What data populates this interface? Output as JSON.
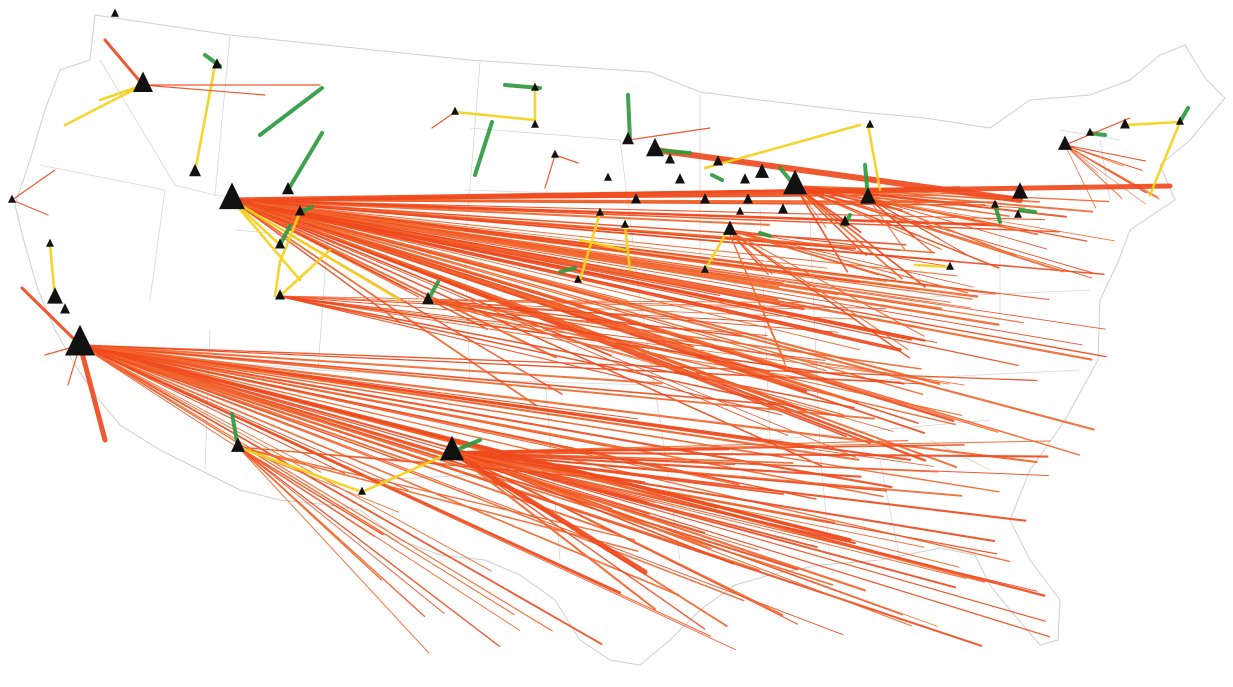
{
  "legend_colors": {
    "long_flow": "#ef4a1e",
    "long_flow_alt": "#f2682e",
    "medium_flow": "#f5d21a",
    "short_flow": "#2e9b3f",
    "hub_marker": "#111111",
    "state_border": "#cfcfcf"
  },
  "icon_names": {
    "hub": "triangle-hub-icon"
  },
  "hub_count": 40,
  "flow_line_count": 260
}
